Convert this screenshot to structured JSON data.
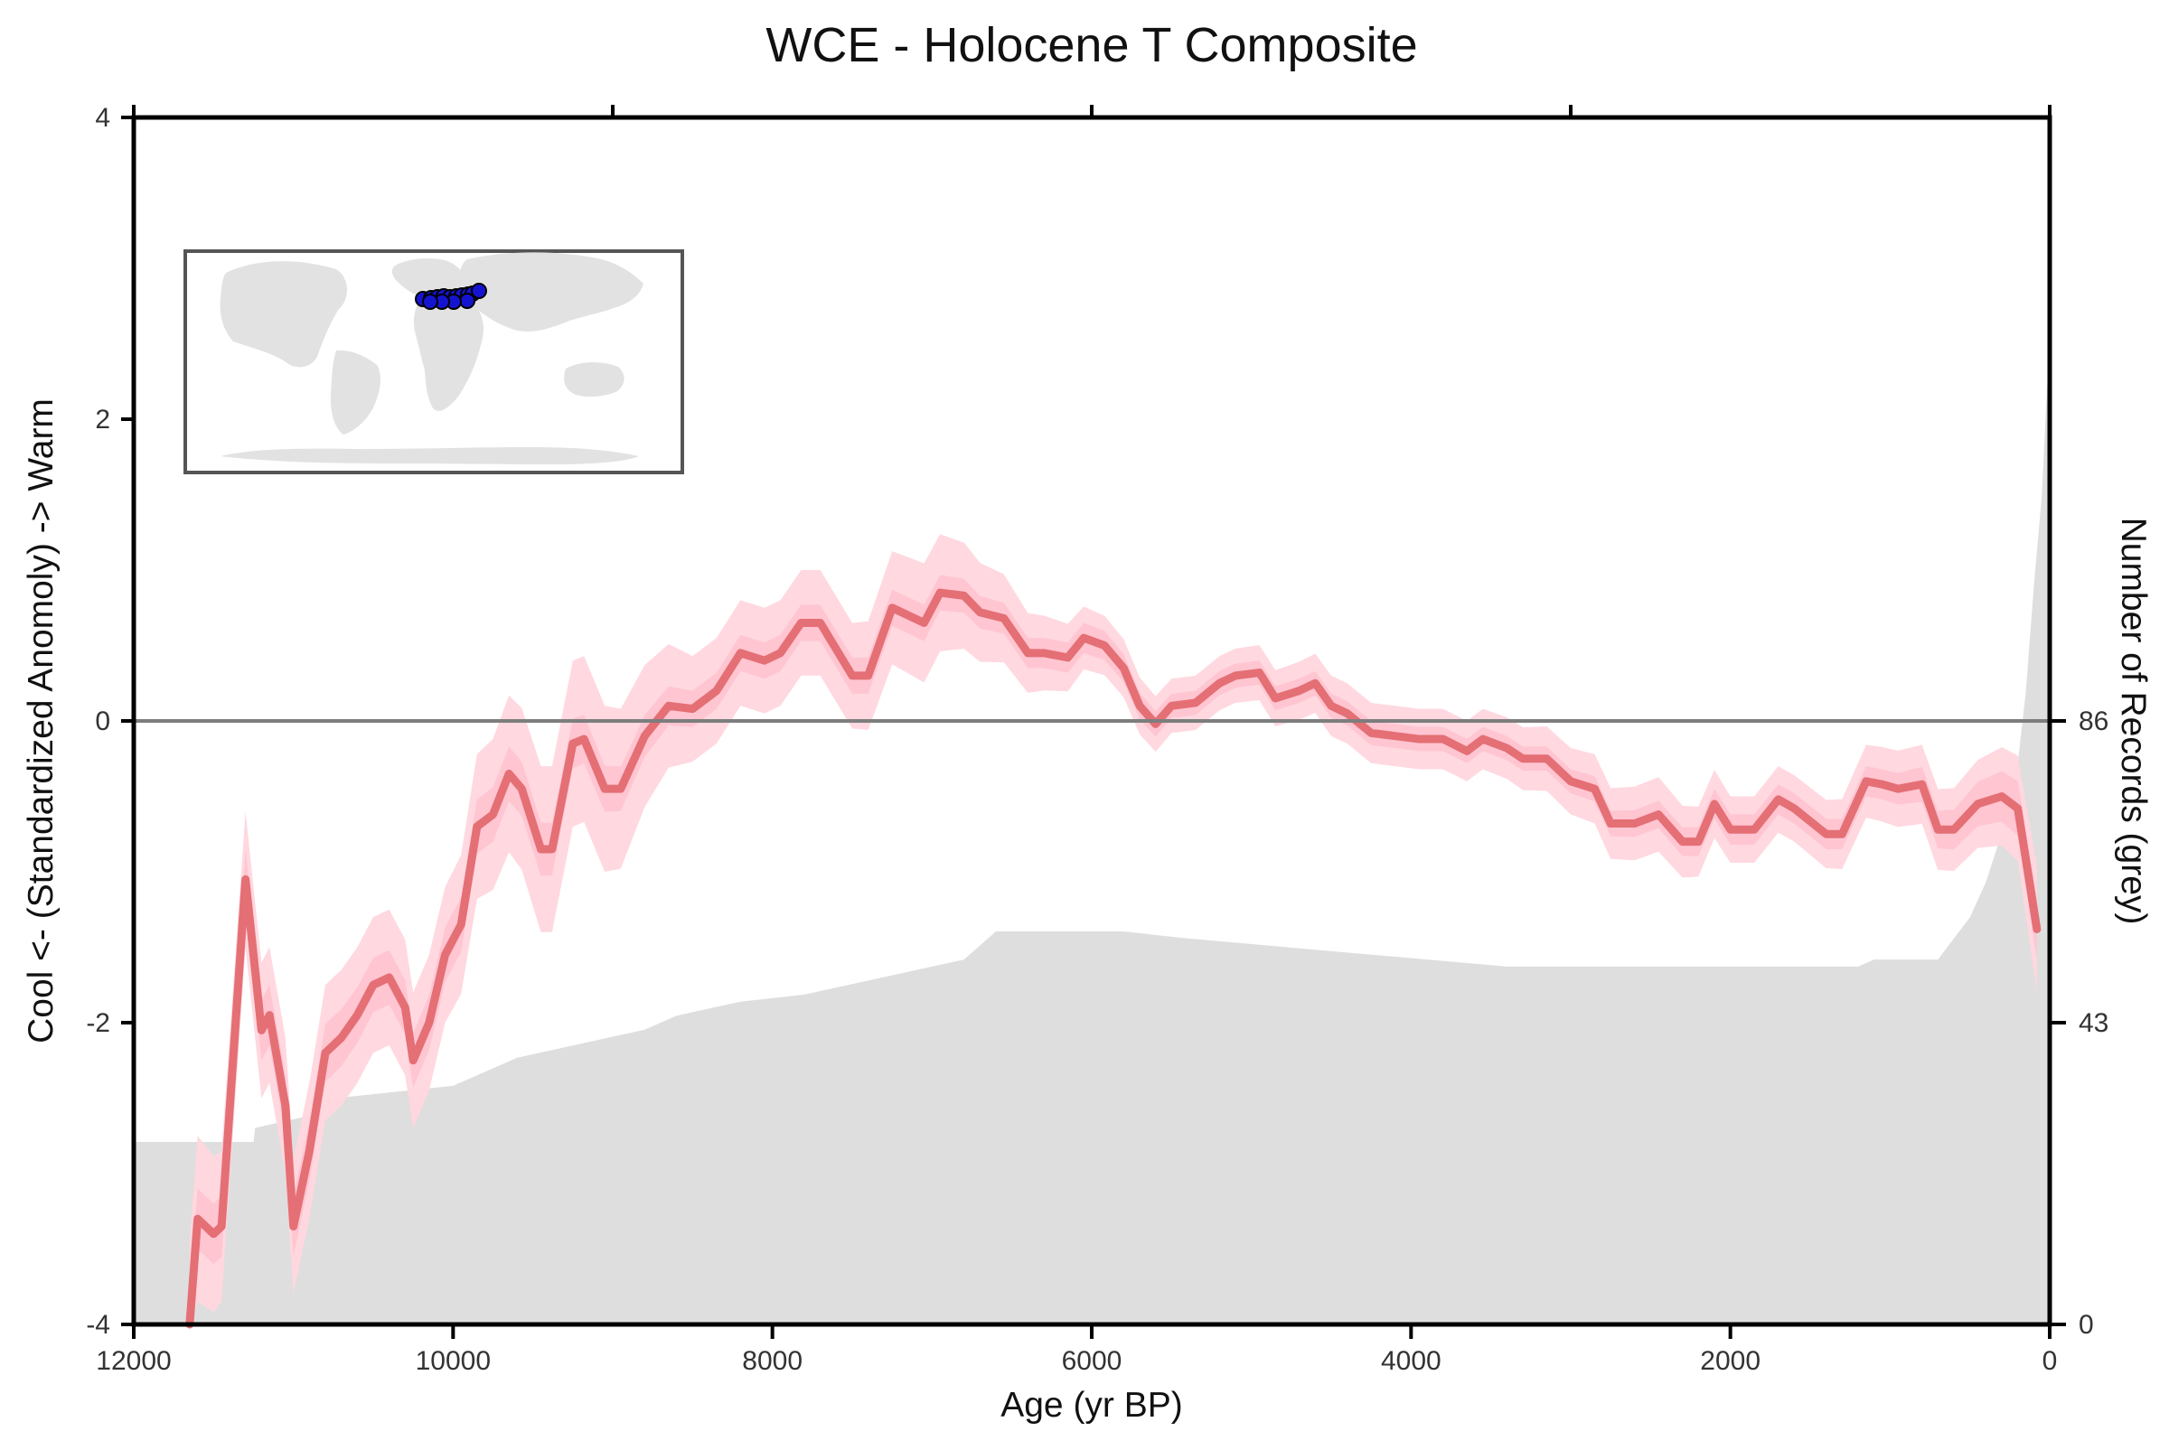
{
  "chart_data": {
    "type": "line",
    "title": "WCE - Holocene T Composite",
    "xlabel": "Age (yr BP)",
    "ylabel": "Cool <- (Standardized Anomoly) -> Warm",
    "y2label": "Number of Records (grey)",
    "xlim": [
      12000,
      0
    ],
    "ylim": [
      -4,
      4
    ],
    "y2lim": [
      0,
      172
    ],
    "x_ticks": [
      12000,
      10000,
      8000,
      6000,
      4000,
      2000,
      0
    ],
    "y_ticks": [
      4,
      2,
      0,
      -2,
      -4
    ],
    "y2_ticks": [
      86,
      43,
      0
    ],
    "zero_line": true,
    "colors": {
      "median_line": "#e46f75",
      "band_outer": "#ffd6de",
      "band_inner": "#ffc3cf",
      "records_fill": "#dedede",
      "axis": "#000000",
      "zero_line": "#7d7d7d",
      "inset_land": "#e2e2e2",
      "site_marker": "#1414d0"
    },
    "inset_map": {
      "type": "world map",
      "markers": "site locations"
    },
    "series": [
      {
        "values": [
          [
            11650,
            -4.0
          ],
          [
            11600,
            -3.3
          ],
          [
            11500,
            -3.4
          ],
          [
            11450,
            -3.35
          ],
          [
            11300,
            -1.05
          ],
          [
            11200,
            -2.05
          ],
          [
            11150,
            -1.95
          ],
          [
            11050,
            -2.55
          ],
          [
            11000,
            -3.35
          ],
          [
            10900,
            -2.85
          ],
          [
            10800,
            -2.2
          ],
          [
            10700,
            -2.1
          ],
          [
            10600,
            -1.95
          ],
          [
            10500,
            -1.75
          ],
          [
            10400,
            -1.7
          ],
          [
            10300,
            -1.9
          ],
          [
            10250,
            -2.25
          ],
          [
            10150,
            -2.0
          ],
          [
            10050,
            -1.55
          ],
          [
            9950,
            -1.35
          ],
          [
            9850,
            -0.7
          ],
          [
            9750,
            -0.62
          ],
          [
            9650,
            -0.35
          ],
          [
            9570,
            -0.45
          ],
          [
            9450,
            -0.85
          ],
          [
            9380,
            -0.85
          ],
          [
            9250,
            -0.15
          ],
          [
            9180,
            -0.12
          ],
          [
            9050,
            -0.45
          ],
          [
            8950,
            -0.45
          ],
          [
            8800,
            -0.1
          ],
          [
            8650,
            0.1
          ],
          [
            8500,
            0.08
          ],
          [
            8350,
            0.2
          ],
          [
            8200,
            0.45
          ],
          [
            8050,
            0.4
          ],
          [
            7950,
            0.45
          ],
          [
            7820,
            0.65
          ],
          [
            7700,
            0.65
          ],
          [
            7500,
            0.3
          ],
          [
            7400,
            0.3
          ],
          [
            7250,
            0.75
          ],
          [
            7050,
            0.65
          ],
          [
            6950,
            0.85
          ],
          [
            6800,
            0.83
          ],
          [
            6700,
            0.72
          ],
          [
            6550,
            0.68
          ],
          [
            6400,
            0.45
          ],
          [
            6300,
            0.45
          ],
          [
            6150,
            0.42
          ],
          [
            6050,
            0.55
          ],
          [
            5920,
            0.5
          ],
          [
            5800,
            0.35
          ],
          [
            5700,
            0.1
          ],
          [
            5600,
            -0.02
          ],
          [
            5500,
            0.1
          ],
          [
            5350,
            0.12
          ],
          [
            5200,
            0.25
          ],
          [
            5100,
            0.3
          ],
          [
            4950,
            0.32
          ],
          [
            4850,
            0.15
          ],
          [
            4700,
            0.2
          ],
          [
            4600,
            0.25
          ],
          [
            4500,
            0.1
          ],
          [
            4400,
            0.05
          ],
          [
            4250,
            -0.08
          ],
          [
            4100,
            -0.1
          ],
          [
            3950,
            -0.12
          ],
          [
            3800,
            -0.12
          ],
          [
            3650,
            -0.2
          ],
          [
            3550,
            -0.12
          ],
          [
            3400,
            -0.18
          ],
          [
            3300,
            -0.25
          ],
          [
            3150,
            -0.25
          ],
          [
            3000,
            -0.4
          ],
          [
            2850,
            -0.45
          ],
          [
            2750,
            -0.68
          ],
          [
            2600,
            -0.68
          ],
          [
            2450,
            -0.62
          ],
          [
            2300,
            -0.8
          ],
          [
            2200,
            -0.8
          ],
          [
            2100,
            -0.55
          ],
          [
            2000,
            -0.72
          ],
          [
            1850,
            -0.72
          ],
          [
            1700,
            -0.52
          ],
          [
            1600,
            -0.58
          ],
          [
            1400,
            -0.75
          ],
          [
            1300,
            -0.75
          ],
          [
            1150,
            -0.4
          ],
          [
            1050,
            -0.42
          ],
          [
            950,
            -0.45
          ],
          [
            800,
            -0.42
          ],
          [
            700,
            -0.72
          ],
          [
            600,
            -0.72
          ],
          [
            450,
            -0.55
          ],
          [
            300,
            -0.5
          ],
          [
            200,
            -0.58
          ],
          [
            80,
            -1.38
          ]
        ],
        "uncertainty_inner": [
          [
            11650,
            0.2
          ],
          [
            11600,
            0.2
          ],
          [
            11300,
            0.2
          ],
          [
            11000,
            0.2
          ],
          [
            10500,
            0.18
          ],
          [
            10000,
            0.18
          ],
          [
            9500,
            0.18
          ],
          [
            9000,
            0.15
          ],
          [
            8500,
            0.12
          ],
          [
            8000,
            0.12
          ],
          [
            7500,
            0.12
          ],
          [
            7000,
            0.12
          ],
          [
            6500,
            0.1
          ],
          [
            6000,
            0.1
          ],
          [
            5500,
            0.08
          ],
          [
            5000,
            0.08
          ],
          [
            4500,
            0.08
          ],
          [
            4000,
            0.08
          ],
          [
            3500,
            0.08
          ],
          [
            3000,
            0.08
          ],
          [
            2500,
            0.09
          ],
          [
            2000,
            0.1
          ],
          [
            1500,
            0.1
          ],
          [
            1000,
            0.1
          ],
          [
            500,
            0.14
          ],
          [
            200,
            0.18
          ],
          [
            80,
            0.2
          ]
        ],
        "uncertainty_outer": [
          [
            11650,
            0.55
          ],
          [
            11600,
            0.55
          ],
          [
            11300,
            0.45
          ],
          [
            11000,
            0.45
          ],
          [
            10500,
            0.45
          ],
          [
            10000,
            0.45
          ],
          [
            9500,
            0.55
          ],
          [
            9000,
            0.55
          ],
          [
            8500,
            0.35
          ],
          [
            8000,
            0.35
          ],
          [
            7500,
            0.35
          ],
          [
            7000,
            0.4
          ],
          [
            6500,
            0.28
          ],
          [
            6000,
            0.2
          ],
          [
            5500,
            0.18
          ],
          [
            5000,
            0.18
          ],
          [
            4500,
            0.2
          ],
          [
            4000,
            0.2
          ],
          [
            3500,
            0.2
          ],
          [
            3000,
            0.22
          ],
          [
            2500,
            0.25
          ],
          [
            2000,
            0.22
          ],
          [
            1500,
            0.22
          ],
          [
            1000,
            0.25
          ],
          [
            500,
            0.28
          ],
          [
            200,
            0.35
          ],
          [
            80,
            0.42
          ]
        ]
      },
      {
        "name": "Number of Records (grey)",
        "values": [
          [
            12000,
            26
          ],
          [
            11250,
            26
          ],
          [
            11240,
            28
          ],
          [
            10850,
            30
          ],
          [
            10840,
            32
          ],
          [
            10000,
            34
          ],
          [
            9600,
            38
          ],
          [
            9000,
            41
          ],
          [
            8800,
            42
          ],
          [
            8600,
            44
          ],
          [
            8200,
            46
          ],
          [
            7800,
            47
          ],
          [
            7600,
            48
          ],
          [
            7200,
            50
          ],
          [
            6800,
            52
          ],
          [
            6700,
            54
          ],
          [
            6600,
            56
          ],
          [
            6200,
            56
          ],
          [
            5800,
            56
          ],
          [
            5400,
            55
          ],
          [
            4400,
            53
          ],
          [
            3400,
            51
          ],
          [
            2400,
            51
          ],
          [
            1200,
            51
          ],
          [
            1100,
            52
          ],
          [
            700,
            52
          ],
          [
            600,
            55
          ],
          [
            500,
            58
          ],
          [
            400,
            63
          ],
          [
            300,
            70
          ],
          [
            200,
            80
          ],
          [
            150,
            90
          ],
          [
            100,
            105
          ],
          [
            50,
            118
          ],
          [
            20,
            132
          ],
          [
            0,
            140
          ]
        ]
      }
    ]
  }
}
